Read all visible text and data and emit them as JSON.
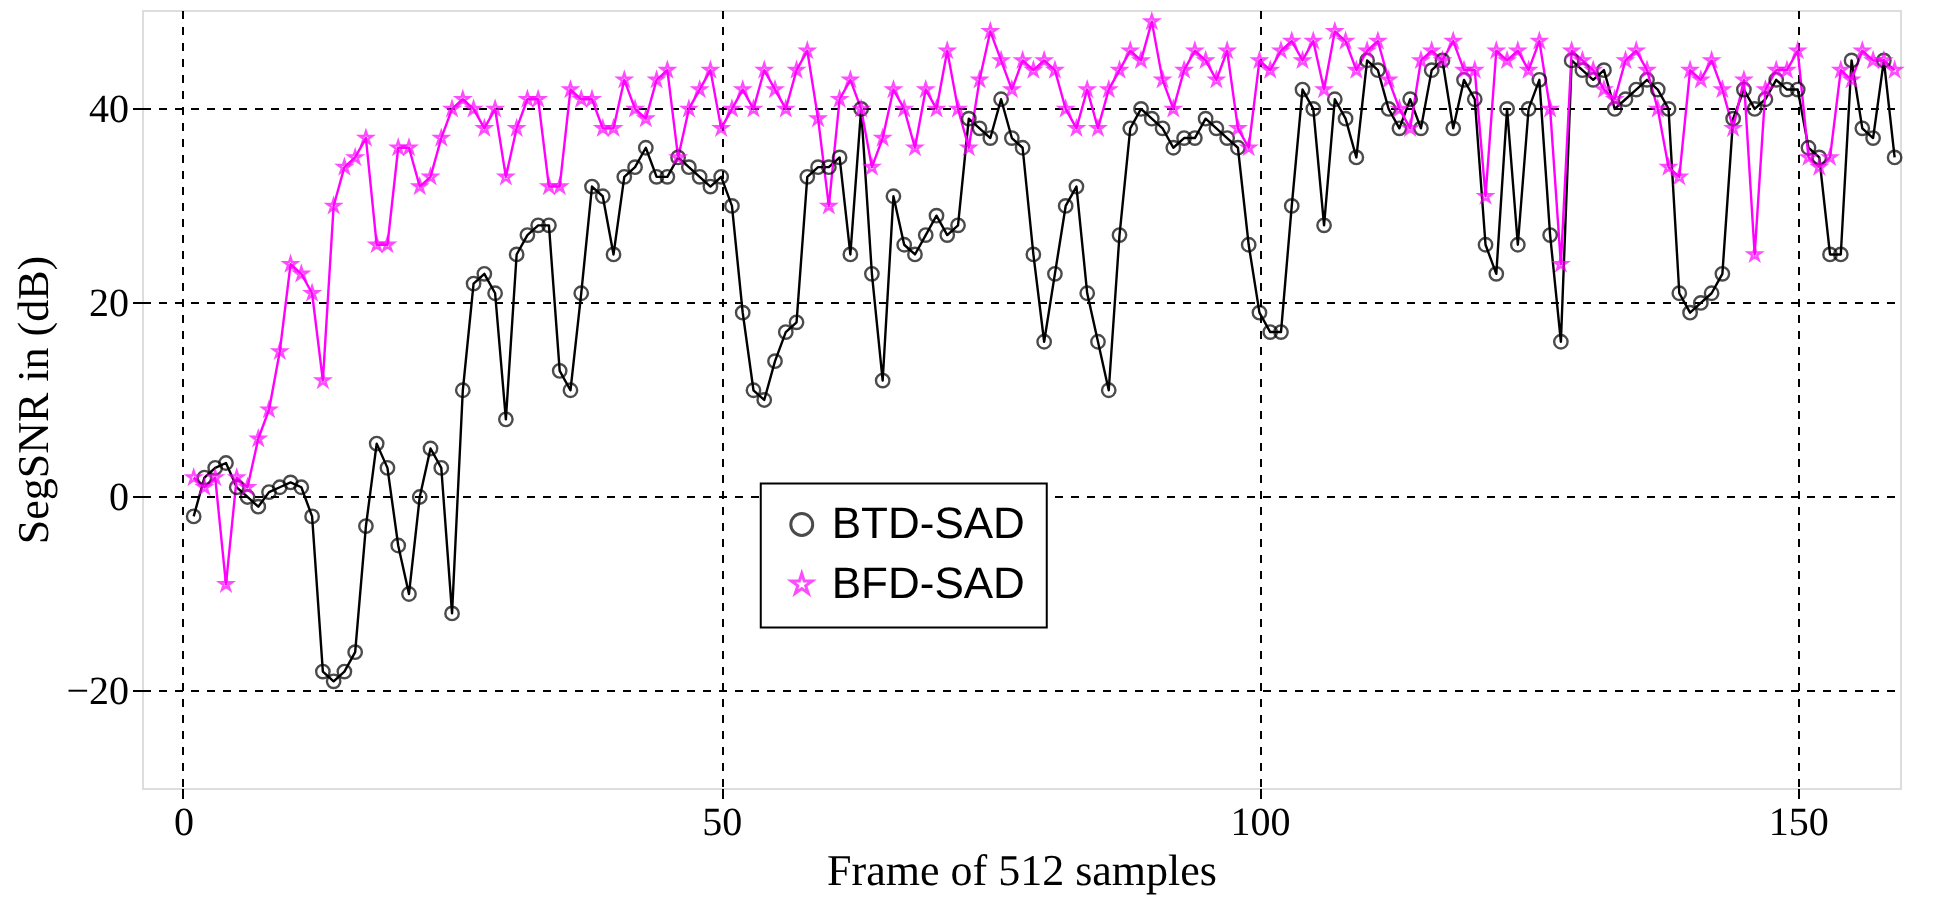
{
  "chart_data": {
    "type": "line",
    "xlabel": "Frame of 512 samples",
    "ylabel": "SegSNR in (dB)",
    "x": [
      1,
      2,
      3,
      4,
      5,
      6,
      7,
      8,
      9,
      10,
      11,
      12,
      13,
      14,
      15,
      16,
      17,
      18,
      19,
      20,
      21,
      22,
      23,
      24,
      25,
      26,
      27,
      28,
      29,
      30,
      31,
      32,
      33,
      34,
      35,
      36,
      37,
      38,
      39,
      40,
      41,
      42,
      43,
      44,
      45,
      46,
      47,
      48,
      49,
      50,
      51,
      52,
      53,
      54,
      55,
      56,
      57,
      58,
      59,
      60,
      61,
      62,
      63,
      64,
      65,
      66,
      67,
      68,
      69,
      70,
      71,
      72,
      73,
      74,
      75,
      76,
      77,
      78,
      79,
      80,
      81,
      82,
      83,
      84,
      85,
      86,
      87,
      88,
      89,
      90,
      91,
      92,
      93,
      94,
      95,
      96,
      97,
      98,
      99,
      100,
      101,
      102,
      103,
      104,
      105,
      106,
      107,
      108,
      109,
      110,
      111,
      112,
      113,
      114,
      115,
      116,
      117,
      118,
      119,
      120,
      121,
      122,
      123,
      124,
      125,
      126,
      127,
      128,
      129,
      130,
      131,
      132,
      133,
      134,
      135,
      136,
      137,
      138,
      139,
      140,
      141,
      142,
      143,
      144,
      145,
      146,
      147,
      148,
      149,
      150,
      151,
      152,
      153,
      154,
      155,
      156,
      157,
      158,
      159
    ],
    "series": [
      {
        "name": "BTD-SAD",
        "color": "#000000",
        "marker": "circle",
        "values": [
          -2,
          2,
          3,
          3.5,
          1,
          0,
          -1,
          0.5,
          1,
          1.5,
          1,
          -2,
          -18,
          -19,
          -18,
          -16,
          -3,
          5.5,
          3,
          -5,
          -10,
          0,
          5,
          3,
          -12,
          11,
          22,
          23,
          21,
          8,
          25,
          27,
          28,
          28,
          13,
          11,
          21,
          32,
          31,
          25,
          33,
          34,
          36,
          33,
          33,
          35,
          34,
          33,
          32,
          33,
          30,
          19,
          11,
          10,
          14,
          17,
          18,
          33,
          34,
          34,
          35,
          25,
          40,
          23,
          12,
          31,
          26,
          25,
          27,
          29,
          27,
          28,
          39,
          38,
          37,
          41,
          37,
          36,
          25,
          16,
          23,
          30,
          32,
          21,
          16,
          11,
          27,
          38,
          40,
          39,
          38,
          36,
          37,
          37,
          39,
          38,
          37,
          36,
          26,
          19,
          17,
          17,
          30,
          42,
          40,
          28,
          41,
          39,
          35,
          45,
          44,
          40,
          38,
          41,
          38,
          44,
          45,
          38,
          43,
          41,
          26,
          23,
          40,
          26,
          40,
          43,
          27,
          16,
          45,
          44,
          43,
          44,
          40,
          41,
          42,
          43,
          42,
          40,
          21,
          19,
          20,
          21,
          23,
          39,
          42,
          40,
          41,
          43,
          42,
          42,
          36,
          35,
          25,
          25,
          45,
          38,
          37,
          45,
          35
        ]
      },
      {
        "name": "BFD-SAD",
        "color": "#ff00ff",
        "marker": "star",
        "values": [
          2,
          1,
          2,
          -9,
          2,
          1,
          6,
          9,
          15,
          24,
          23,
          21,
          12,
          30,
          34,
          35,
          37,
          26,
          26,
          36,
          36,
          32,
          33,
          37,
          40,
          41,
          40,
          38,
          40,
          33,
          38,
          41,
          41,
          32,
          32,
          42,
          41,
          41,
          38,
          38,
          43,
          40,
          39,
          43,
          44,
          35,
          40,
          42,
          44,
          38,
          40,
          42,
          40,
          44,
          42,
          40,
          44,
          46,
          39,
          30,
          41,
          43,
          40,
          34,
          37,
          42,
          40,
          36,
          42,
          40,
          46,
          40,
          36,
          43,
          48,
          45,
          42,
          45,
          44,
          45,
          44,
          40,
          38,
          42,
          38,
          42,
          44,
          46,
          45,
          49,
          43,
          40,
          44,
          46,
          45,
          43,
          46,
          38,
          36,
          45,
          44,
          46,
          47,
          45,
          47,
          42,
          48,
          47,
          44,
          46,
          47,
          43,
          40,
          38,
          45,
          46,
          45,
          47,
          44,
          44,
          31,
          46,
          45,
          46,
          44,
          47,
          40,
          24,
          46,
          45,
          44,
          42,
          41,
          45,
          46,
          44,
          40,
          34,
          33,
          44,
          43,
          45,
          42,
          38,
          43,
          25,
          42,
          44,
          44,
          46,
          35,
          34,
          35,
          44,
          43,
          46,
          45,
          45,
          44
        ]
      }
    ],
    "xlim": [
      -3.8,
      159.5
    ],
    "ylim": [
      -30,
      50.2
    ],
    "xticks": [
      0,
      50,
      100,
      150
    ],
    "yticks": [
      -20,
      0,
      20,
      40
    ],
    "grid": true,
    "legend": "bottom",
    "line_style": "solid"
  }
}
